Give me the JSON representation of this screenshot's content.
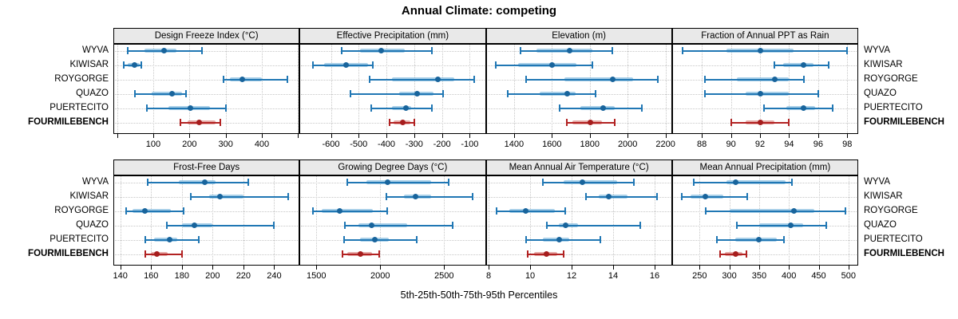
{
  "title": "Annual Climate: competing",
  "xlabel": "5th-25th-50th-75th-95th Percentiles",
  "colors": {
    "blue_line": "#2077b4",
    "blue_band": "#a8cfe8",
    "blue_dot": "#18649c",
    "red_line": "#b22222",
    "red_band": "#e5aba8",
    "red_dot": "#a61d1d",
    "strip_bg": "#e9e9e9",
    "grid": "#c7c7c7",
    "border": "#000000"
  },
  "chart_data": {
    "type": "dot-whisker percentile plot (5th-25th-50th-75th-95th)",
    "layout": {
      "rows": 2,
      "cols": 4
    },
    "sites": [
      "WYVA",
      "KIWISAR",
      "ROYGORGE",
      "QUAZO",
      "PUERTECITO",
      "FOURMILEBENCH"
    ],
    "highlight_site": "FOURMILEBENCH",
    "panels": [
      {
        "title": "Design Freeze Index (°C)",
        "xlim": [
          -8,
          502
        ],
        "ticks": [
          100,
          200,
          300,
          400
        ],
        "unlabeled_ticks": [
          0,
          500
        ],
        "percentiles": {
          "WYVA": [
            30,
            75,
            130,
            165,
            235
          ],
          "KIWISAR": [
            19,
            30,
            48,
            62,
            68
          ],
          "ROYGORGE": [
            295,
            312,
            345,
            400,
            470
          ],
          "QUAZO": [
            50,
            95,
            152,
            180,
            190
          ],
          "PUERTECITO": [
            82,
            143,
            202,
            257,
            300
          ],
          "FOURMILEBENCH": [
            176,
            195,
            227,
            272,
            285
          ]
        }
      },
      {
        "title": "Effective Precipitation (mm)",
        "xlim": [
          -710,
          -45
        ],
        "ticks": [
          -600,
          -500,
          -400,
          -300,
          -200,
          -100
        ],
        "unlabeled_ticks": [],
        "percentiles": {
          "WYVA": [
            -560,
            -495,
            -420,
            -335,
            -235
          ],
          "KIWISAR": [
            -665,
            -625,
            -545,
            -465,
            -450
          ],
          "ROYGORGE": [
            -460,
            -380,
            -215,
            -155,
            -85
          ],
          "QUAZO": [
            -530,
            -355,
            -290,
            -230,
            -195
          ],
          "PUERTECITO": [
            -455,
            -380,
            -330,
            -310,
            -235
          ],
          "FOURMILEBENCH": [
            -390,
            -375,
            -340,
            -315,
            -300
          ]
        }
      },
      {
        "title": "Elevation (m)",
        "xlim": [
          1255,
          2230
        ],
        "ticks": [
          1400,
          1600,
          1800,
          2000,
          2200
        ],
        "unlabeled_ticks": [],
        "percentiles": {
          "WYVA": [
            1435,
            1520,
            1695,
            1815,
            1920
          ],
          "KIWISAR": [
            1305,
            1420,
            1600,
            1730,
            1815
          ],
          "ROYGORGE": [
            1465,
            1665,
            1920,
            2030,
            2160
          ],
          "QUAZO": [
            1365,
            1535,
            1680,
            1725,
            1830
          ],
          "PUERTECITO": [
            1640,
            1750,
            1870,
            1930,
            2075
          ],
          "FOURMILEBENCH": [
            1680,
            1710,
            1805,
            1865,
            1930
          ]
        }
      },
      {
        "title": "Fraction of Annual PPT as Rain",
        "xlim": [
          86,
          98.7
        ],
        "ticks": [
          88,
          90,
          92,
          94,
          96,
          98
        ],
        "unlabeled_ticks": [],
        "percentiles": {
          "WYVA": [
            86.7,
            89.7,
            92,
            94.3,
            98
          ],
          "KIWISAR": [
            93,
            93.6,
            95,
            95.7,
            96.7
          ],
          "ROYGORGE": [
            88.2,
            90.4,
            93,
            94,
            95
          ],
          "QUAZO": [
            88.2,
            91,
            92,
            94,
            96
          ],
          "PUERTECITO": [
            92.3,
            93.8,
            95,
            95.8,
            97
          ],
          "FOURMILEBENCH": [
            90,
            91,
            92,
            93,
            94
          ]
        }
      },
      {
        "title": "Frost-Free Days",
        "xlim": [
          136,
          256
        ],
        "ticks": [
          140,
          160,
          180,
          200,
          220,
          240
        ],
        "unlabeled_ticks": [],
        "percentiles": {
          "WYVA": [
            158,
            178,
            195,
            202,
            223
          ],
          "KIWISAR": [
            186,
            198,
            205,
            220,
            249
          ],
          "ROYGORGE": [
            144,
            148,
            156,
            173,
            181
          ],
          "QUAZO": [
            170,
            180,
            188,
            200,
            240
          ],
          "PUERTECITO": [
            156,
            162,
            172,
            177,
            191
          ],
          "FOURMILEBENCH": [
            156,
            160,
            164,
            171,
            180
          ]
        }
      },
      {
        "title": "Growing Degree Days (°C)",
        "xlim": [
          1375,
          2820
        ],
        "ticks": [
          1500,
          2000,
          2500
        ],
        "unlabeled_ticks": [],
        "percentiles": {
          "WYVA": [
            1745,
            1890,
            2055,
            2400,
            2535
          ],
          "KIWISAR": [
            2050,
            2185,
            2275,
            2400,
            2725
          ],
          "ROYGORGE": [
            1475,
            1540,
            1680,
            1945,
            2055
          ],
          "QUAZO": [
            1725,
            1830,
            1935,
            2210,
            2565
          ],
          "PUERTECITO": [
            1720,
            1840,
            1955,
            2065,
            2285
          ],
          "FOURMILEBENCH": [
            1705,
            1745,
            1845,
            1935,
            1990
          ]
        }
      },
      {
        "title": "Mean Annual Air Temperature (°C)",
        "xlim": [
          7.9,
          16.8
        ],
        "ticks": [
          8,
          10,
          12,
          14,
          16
        ],
        "unlabeled_ticks": [],
        "percentiles": {
          "WYVA": [
            10.6,
            11.6,
            12.5,
            14.2,
            15.0
          ],
          "KIWISAR": [
            12.7,
            13.3,
            13.8,
            14.7,
            16.1
          ],
          "ROYGORGE": [
            8.4,
            9.0,
            9.8,
            11.2,
            11.7
          ],
          "QUAZO": [
            10.8,
            11.4,
            11.7,
            12.3,
            15.3
          ],
          "PUERTECITO": [
            9.8,
            10.6,
            11.4,
            11.9,
            13.4
          ],
          "FOURMILEBENCH": [
            9.9,
            10.2,
            10.8,
            11.3,
            11.6
          ]
        }
      },
      {
        "title": "Mean Annual Precipitation (mm)",
        "xlim": [
          205,
          515
        ],
        "ticks": [
          250,
          300,
          350,
          400,
          450,
          500
        ],
        "unlabeled_ticks": [],
        "percentiles": {
          "WYVA": [
            240,
            295,
            310,
            395,
            405
          ],
          "KIWISAR": [
            220,
            235,
            260,
            290,
            330
          ],
          "ROYGORGE": [
            260,
            300,
            408,
            443,
            495
          ],
          "QUAZO": [
            312,
            350,
            403,
            424,
            463
          ],
          "PUERTECITO": [
            279,
            310,
            349,
            380,
            392
          ],
          "FOURMILEBENCH": [
            285,
            292,
            310,
            322,
            328
          ]
        }
      }
    ]
  }
}
